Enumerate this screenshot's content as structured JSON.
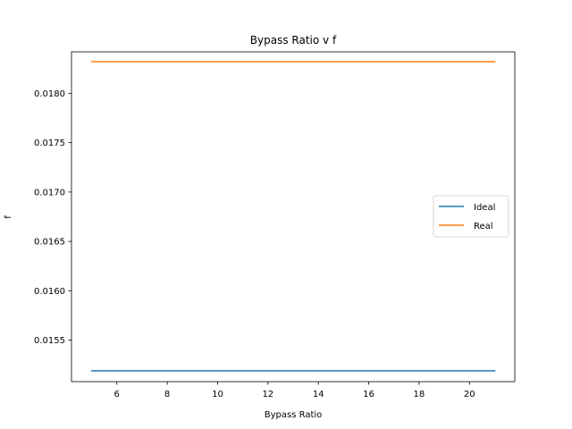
{
  "chart_data": {
    "type": "line",
    "title": "Bypass Ratio v f",
    "xlabel": "Bypass Ratio",
    "ylabel": "f",
    "xlim": [
      4.2,
      21.8
    ],
    "ylim": [
      0.01508,
      0.01842
    ],
    "xticks": [
      6,
      8,
      10,
      12,
      14,
      16,
      18,
      20
    ],
    "yticks": [
      0.0155,
      0.016,
      0.0165,
      0.017,
      0.0175,
      0.018
    ],
    "ytick_labels": [
      "0.0155",
      "0.0160",
      "0.0165",
      "0.0170",
      "0.0175",
      "0.0180"
    ],
    "x": [
      5,
      21
    ],
    "series": [
      {
        "name": "Ideal",
        "color": "#1f77b4",
        "values": [
          0.01519,
          0.01519
        ]
      },
      {
        "name": "Real",
        "color": "#ff7f0e",
        "values": [
          0.01832,
          0.01832
        ]
      }
    ],
    "legend_position": "center-right",
    "grid": false
  }
}
